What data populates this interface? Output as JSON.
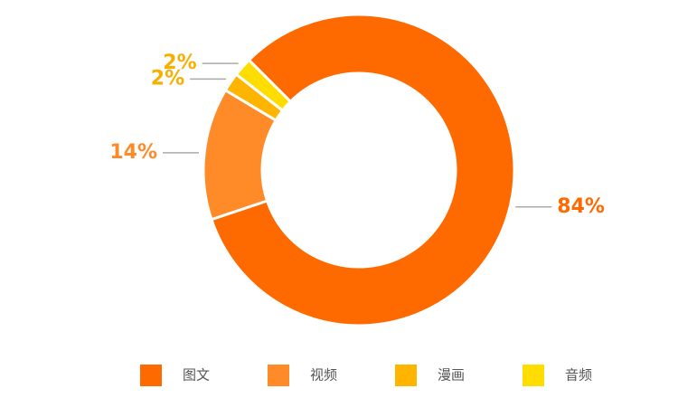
{
  "chart_data": {
    "type": "donut",
    "categories": [
      "图文",
      "视频",
      "漫画",
      "音频"
    ],
    "values": [
      84,
      14,
      2,
      2
    ],
    "value_labels": [
      "84%",
      "14%",
      "2%",
      "2%"
    ],
    "colors": [
      "#ff6a00",
      "#ff8a28",
      "#ffb400",
      "#ffdd00"
    ],
    "label_colors": [
      "#ff6a00",
      "#ff8a28",
      "#f5b000",
      "#f5b000"
    ],
    "legend": "bottom"
  }
}
